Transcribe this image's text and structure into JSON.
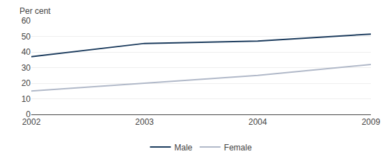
{
  "chart_data": {
    "type": "line",
    "ylabel": "Per cent",
    "categories": [
      "2002",
      "2003",
      "2004",
      "2009"
    ],
    "series": [
      {
        "name": "Male",
        "color": "#1a3a5c",
        "values": [
          37,
          45.5,
          47,
          51.5
        ]
      },
      {
        "name": "Female",
        "color": "#b0b8c8",
        "values": [
          15,
          20,
          25,
          32
        ]
      }
    ],
    "ylim": [
      0,
      60
    ],
    "yticks": [
      0,
      10,
      20,
      30,
      40,
      50,
      60
    ],
    "grid": true,
    "legend": "bottom"
  }
}
